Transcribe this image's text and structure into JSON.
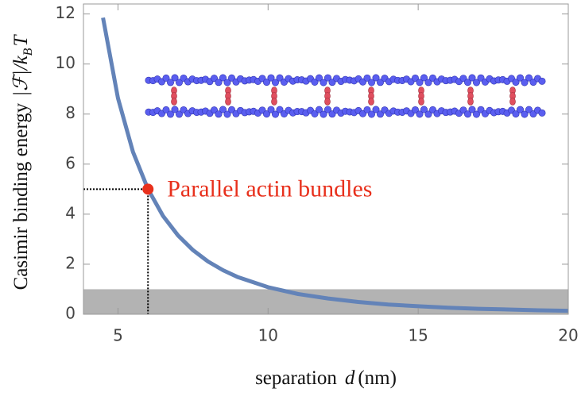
{
  "chart_data": {
    "type": "line",
    "xlabel": {
      "text": "separation",
      "symbol": "d",
      "unit": "(nm)"
    },
    "ylabel": {
      "text": "Casimir binding energy",
      "symbol": "|ℱ|/k",
      "sub": "B",
      "tail": "T"
    },
    "x": [
      4.5,
      5,
      5.5,
      6,
      6.5,
      7,
      7.5,
      8,
      8.5,
      9,
      10,
      11,
      12,
      13,
      14,
      15,
      16,
      17,
      18,
      19,
      20
    ],
    "values": [
      11.85,
      8.64,
      6.49,
      5.0,
      3.93,
      3.15,
      2.56,
      2.11,
      1.76,
      1.48,
      1.08,
      0.81,
      0.63,
      0.49,
      0.39,
      0.32,
      0.26,
      0.22,
      0.19,
      0.16,
      0.14
    ],
    "color": "#6383b8",
    "band": {
      "y": [
        0,
        1
      ],
      "color": "#b3b3b3"
    },
    "annotations": [
      {
        "x": 6,
        "y": 5,
        "label": "Parallel actin bundles",
        "color": "#e8301c"
      }
    ],
    "xlim": [
      3.85,
      20
    ],
    "ylim": [
      0,
      12.4
    ],
    "xticks": [
      5,
      10,
      15,
      20
    ],
    "yticks": [
      0,
      2,
      4,
      6,
      8,
      10,
      12
    ]
  }
}
